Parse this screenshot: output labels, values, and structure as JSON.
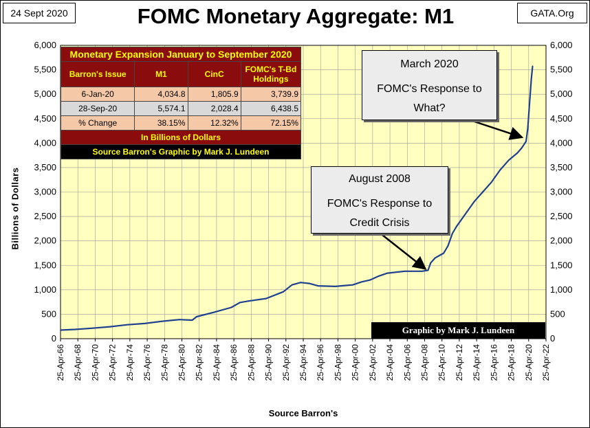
{
  "header": {
    "date": "24 Sept 2020",
    "site": "GATA.Org",
    "title": "FOMC Monetary Aggregate: M1"
  },
  "axes": {
    "ylabel": "Billions  of  Dollars",
    "xlabel": "Source Barron's",
    "yticks_left": [
      "0",
      "500",
      "1,000",
      "1,500",
      "2,000",
      "2,500",
      "3,000",
      "3,500",
      "4,000",
      "4,500",
      "5,000",
      "5,500",
      "6,000"
    ],
    "yticks_right": [
      "0",
      "500",
      "1,000",
      "1,500",
      "2,000",
      "2,500",
      "3,000",
      "3,500",
      "4,000",
      "4,500",
      "5,000",
      "5,500",
      "6,000"
    ],
    "xticks": [
      "25-Apr-66",
      "25-Apr-68",
      "25-Apr-70",
      "25-Apr-72",
      "25-Apr-74",
      "25-Apr-76",
      "25-Apr-78",
      "25-Apr-80",
      "25-Apr-82",
      "25-Apr-84",
      "25-Apr-86",
      "25-Apr-88",
      "25-Apr-90",
      "25-Apr-92",
      "25-Apr-94",
      "25-Apr-96",
      "25-Apr-98",
      "25-Apr-00",
      "25-Apr-02",
      "25-Apr-04",
      "25-Apr-06",
      "25-Apr-08",
      "25-Apr-10",
      "25-Apr-12",
      "25-Apr-14",
      "25-Apr-16",
      "25-Apr-18",
      "25-Apr-20",
      "25-Apr-22"
    ]
  },
  "table": {
    "title": "Monetary Expansion January to September 2020",
    "headers": [
      "Barron's Issue",
      "M1",
      "CinC",
      "FOMC's T-Bd Holdings"
    ],
    "rows": [
      [
        "6-Jan-20",
        "4,034.8",
        "1,805.9",
        "3,739.9"
      ],
      [
        "28-Sep-20",
        "5,574.1",
        "2,028.4",
        "6,438.5"
      ],
      [
        "% Change",
        "38.15%",
        "12.32%",
        "72.15%"
      ]
    ],
    "note": "In Billions of Dollars",
    "source": "Source Barron's   Graphic by Mark J. Lundeen"
  },
  "callouts": {
    "march2020": {
      "title": "March 2020",
      "line1": "FOMC's Response to",
      "line2": "What?"
    },
    "august2008": {
      "title": "August 2008",
      "line1": "FOMC's Response to",
      "line2": "Credit Crisis"
    }
  },
  "credit": "Graphic by Mark J. Lundeen",
  "colors": {
    "plot_bg": "#ffffc0",
    "line": "#1f3f8f",
    "grid": "#9a9a9a",
    "table_red": "#8b0c0c",
    "table_yellow": "#ffff00"
  },
  "chart_data": {
    "type": "line",
    "title": "FOMC Monetary Aggregate: M1",
    "xlabel": "Source Barron's",
    "ylabel": "Billions of Dollars",
    "ylim": [
      0,
      6000
    ],
    "xlim": [
      1966.3,
      2022.3
    ],
    "grid": true,
    "series": [
      {
        "name": "M1",
        "x": [
          1966.3,
          1968,
          1970,
          1972,
          1974,
          1976,
          1978,
          1980,
          1981.5,
          1982,
          1984,
          1986,
          1987,
          1988,
          1990,
          1992,
          1993,
          1994,
          1995,
          1996,
          1998,
          2000,
          2001,
          2002,
          2003,
          2004,
          2006,
          2008,
          2008.7,
          2009,
          2009.5,
          2010,
          2010.5,
          2011,
          2011.5,
          2012,
          2013,
          2014,
          2015,
          2016,
          2017,
          2018,
          2019,
          2019.5,
          2020.0,
          2020.2,
          2020.4,
          2020.6,
          2020.75
        ],
        "values": [
          175,
          190,
          215,
          245,
          285,
          310,
          355,
          390,
          380,
          450,
          540,
          640,
          740,
          770,
          820,
          960,
          1100,
          1150,
          1130,
          1080,
          1070,
          1100,
          1160,
          1200,
          1280,
          1340,
          1380,
          1380,
          1400,
          1550,
          1650,
          1700,
          1750,
          1900,
          2150,
          2300,
          2550,
          2800,
          3000,
          3200,
          3450,
          3650,
          3800,
          3900,
          4034.8,
          4300,
          4800,
          5300,
          5574.1
        ]
      }
    ],
    "annotations": [
      {
        "x": 2020.0,
        "y": 4034.8,
        "text": "March 2020 FOMC's Response to What?"
      },
      {
        "x": 2008.7,
        "y": 1400,
        "text": "August 2008 FOMC's Response to Credit Crisis"
      }
    ]
  }
}
